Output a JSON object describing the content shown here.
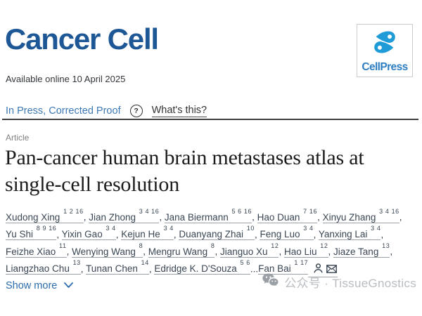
{
  "journal": {
    "title": "Cancer Cell"
  },
  "publisher": {
    "name": "CellPress"
  },
  "header": {
    "available_online": "Available online 10 April 2025"
  },
  "status_bar": {
    "status": "In Press, Corrected Proof",
    "help_glyph": "?",
    "whats_this": "What's this?"
  },
  "article": {
    "label": "Article",
    "title": "Pan-cancer human brain metastases atlas at single-cell resolution"
  },
  "authors": {
    "list": [
      {
        "name": "Xudong Xing",
        "sup": "1 2 16",
        "sep": ", "
      },
      {
        "name": "Jian Zhong",
        "sup": "3 4 16",
        "sep": ", "
      },
      {
        "name": "Jana Biermann",
        "sup": "5 6 16",
        "sep": ", "
      },
      {
        "name": "Hao Duan",
        "sup": "7 16",
        "sep": ", "
      },
      {
        "name": "Xinyu Zhang",
        "sup": "3 4 16",
        "sep": ", "
      },
      {
        "name": "Yu Shi",
        "sup": "8 9 16",
        "sep": ", "
      },
      {
        "name": "Yixin Gao",
        "sup": "3 4",
        "sep": ", "
      },
      {
        "name": "Kejun He",
        "sup": "3 4",
        "sep": ", "
      },
      {
        "name": "Duanyang Zhai",
        "sup": "10",
        "sep": ", "
      },
      {
        "name": "Feng Luo",
        "sup": "3 4",
        "sep": ", "
      },
      {
        "name": "Yanxing Lai",
        "sup": "3 4",
        "sep": ", "
      },
      {
        "name": "Feizhe Xiao",
        "sup": "11",
        "sep": ", "
      },
      {
        "name": "Wenying Wang",
        "sup": "8",
        "sep": ", "
      },
      {
        "name": "Mengru Wang",
        "sup": "8",
        "sep": ", "
      },
      {
        "name": "Jianguo Xu",
        "sup": "12",
        "sep": ", "
      },
      {
        "name": "Hao Liu",
        "sup": "12",
        "sep": ", "
      },
      {
        "name": "Jiaze Tang",
        "sup": "13",
        "sep": ", "
      },
      {
        "name": "Liangzhao Chu",
        "sup": "13",
        "sep": ", "
      },
      {
        "name": "Tunan Chen",
        "sup": "14",
        "sep": ", "
      },
      {
        "name": "Edridge K. D'Souza",
        "sup": "5 6",
        "sep": "..."
      },
      {
        "name": "Fan Bai",
        "sup": "1 17",
        "sep": ""
      }
    ],
    "icons": [
      "person-icon",
      "envelope-icon"
    ]
  },
  "actions": {
    "show_more": "Show more"
  },
  "watermark": {
    "icon": "wechat-icon",
    "text": "公众号 · TissueGnostics"
  },
  "colors": {
    "journal_blue": "#1d5795",
    "cellpress_icon_blue": "#1f9cd7",
    "cellpress_text_blue": "#2e7fc2",
    "status_link_blue": "#3d79b4",
    "show_more_blue": "#2b6cab",
    "text_dark": "#333333",
    "author_text": "#3a4654",
    "watermark_gray": "#b9bdc1"
  }
}
